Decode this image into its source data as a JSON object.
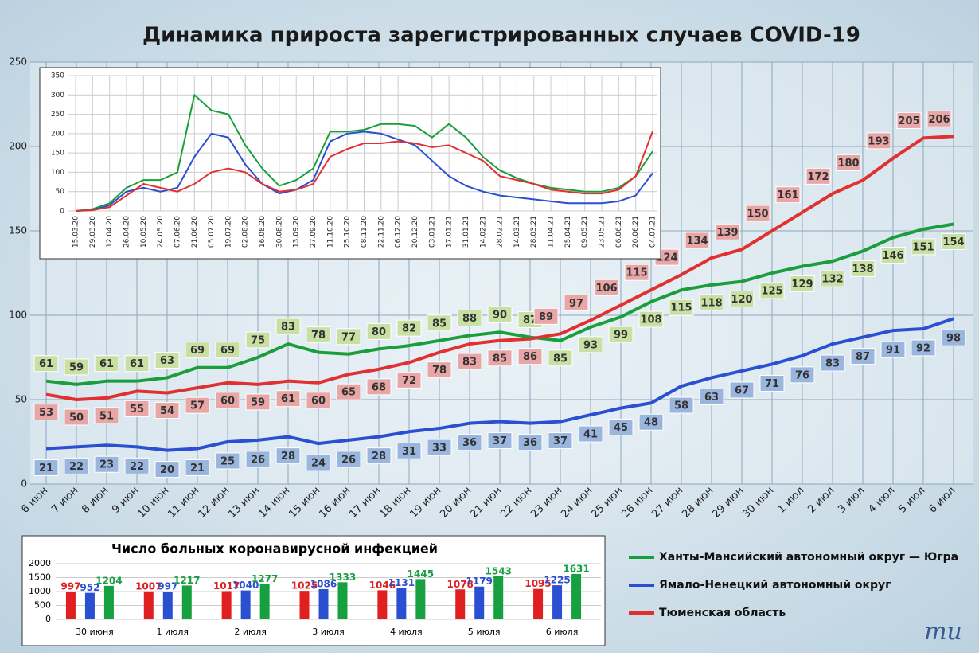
{
  "chart_data": [
    {
      "type": "line",
      "title": "Динамика прироста зарегистрированных случаев COVID-19",
      "categories": [
        "6 июн",
        "7 июн",
        "8 июн",
        "9 июн",
        "10 июн",
        "11 июн",
        "12 июн",
        "13 июн",
        "14 июн",
        "15 июн",
        "16 июн",
        "17 июн",
        "18 июн",
        "19 июн",
        "20 июн",
        "21 июн",
        "22 июн",
        "23 июн",
        "24 июн",
        "25 июн",
        "26 июн",
        "27 июн",
        "28 июн",
        "29 июн",
        "30 июн",
        "1 июл",
        "2 июл",
        "3 июл",
        "4 июл",
        "5 июл",
        "6 июл"
      ],
      "ylim": [
        0,
        250
      ],
      "yticks": [
        0,
        50,
        100,
        150,
        200,
        250
      ],
      "grid": true,
      "legend": "right",
      "series": [
        {
          "name": "Ханты-Мансийский автономный округ — Югра",
          "color": "#1a9e3c",
          "values": [
            61,
            59,
            61,
            61,
            63,
            69,
            69,
            75,
            83,
            78,
            77,
            80,
            82,
            85,
            88,
            90,
            87,
            85,
            93,
            99,
            108,
            115,
            118,
            120,
            125,
            129,
            132,
            138,
            146,
            151,
            154
          ]
        },
        {
          "name": "Ямало-Ненецкий автономный округ",
          "color": "#2a4fd0",
          "values": [
            21,
            22,
            23,
            22,
            20,
            21,
            25,
            26,
            28,
            24,
            26,
            28,
            31,
            33,
            36,
            37,
            36,
            37,
            41,
            45,
            48,
            58,
            63,
            67,
            71,
            76,
            83,
            87,
            91,
            92,
            98
          ]
        },
        {
          "name": "Тюменская область",
          "color": "#e03030",
          "values": [
            53,
            50,
            51,
            55,
            54,
            57,
            60,
            59,
            61,
            60,
            65,
            68,
            72,
            78,
            83,
            85,
            86,
            89,
            97,
            106,
            115,
            124,
            134,
            139,
            150,
            161,
            172,
            180,
            193,
            205,
            206
          ]
        }
      ]
    },
    {
      "type": "line",
      "categories": [
        "15.03.20",
        "29.03.20",
        "12.04.20",
        "26.04.20",
        "10.05.20",
        "24.05.20",
        "07.06.20",
        "21.06.20",
        "05.07.20",
        "19.07.20",
        "02.08.20",
        "16.08.20",
        "30.08.20",
        "13.09.20",
        "27.09.20",
        "11.10.20",
        "25.10.20",
        "08.11.20",
        "22.11.20",
        "06.12.20",
        "20.12.20",
        "03.01.21",
        "17.01.21",
        "31.01.21",
        "14.02.21",
        "28.02.21",
        "14.03.21",
        "28.03.21",
        "11.04.21",
        "25.04.21",
        "09.05.21",
        "23.05.21",
        "06.06.21",
        "20.06.21",
        "04.07.21"
      ],
      "ylim": [
        0,
        350
      ],
      "yticks": [
        0,
        50,
        100,
        150,
        200,
        250,
        300,
        350
      ],
      "grid": true,
      "series": [
        {
          "color": "#1a9e3c",
          "values": [
            0,
            5,
            20,
            60,
            80,
            80,
            100,
            300,
            260,
            250,
            170,
            110,
            65,
            80,
            110,
            205,
            205,
            210,
            225,
            225,
            220,
            190,
            225,
            190,
            140,
            105,
            85,
            70,
            60,
            55,
            50,
            50,
            60,
            90,
            154
          ]
        },
        {
          "color": "#2a4fd0",
          "values": [
            0,
            2,
            15,
            50,
            60,
            50,
            60,
            140,
            200,
            190,
            120,
            70,
            45,
            55,
            80,
            180,
            200,
            205,
            200,
            185,
            170,
            130,
            90,
            65,
            50,
            40,
            35,
            30,
            25,
            20,
            20,
            20,
            25,
            40,
            98
          ]
        },
        {
          "color": "#e03030",
          "values": [
            0,
            2,
            10,
            40,
            70,
            60,
            50,
            70,
            100,
            110,
            100,
            70,
            50,
            55,
            70,
            140,
            160,
            175,
            175,
            180,
            175,
            165,
            170,
            150,
            130,
            90,
            80,
            70,
            55,
            50,
            45,
            45,
            55,
            90,
            206
          ]
        }
      ]
    },
    {
      "type": "bar",
      "title": "Число больных коронавирусной инфекцией",
      "categories": [
        "30 июня",
        "1 июля",
        "2 июля",
        "3 июля",
        "4 июля",
        "5 июля",
        "6 июля"
      ],
      "ylim": [
        0,
        2000
      ],
      "yticks": [
        0,
        500,
        1000,
        1500,
        2000
      ],
      "grid": true,
      "series": [
        {
          "color": "#e02020",
          "values": [
            997,
            1007,
            1017,
            1025,
            1046,
            1078,
            1095
          ]
        },
        {
          "color": "#2a4fd0",
          "values": [
            952,
            997,
            1040,
            1086,
            1131,
            1179,
            1225
          ]
        },
        {
          "color": "#16a040",
          "values": [
            1204,
            1217,
            1277,
            1333,
            1445,
            1543,
            1631
          ]
        }
      ]
    },
    {
      "type": "logo",
      "text": "ти"
    }
  ]
}
